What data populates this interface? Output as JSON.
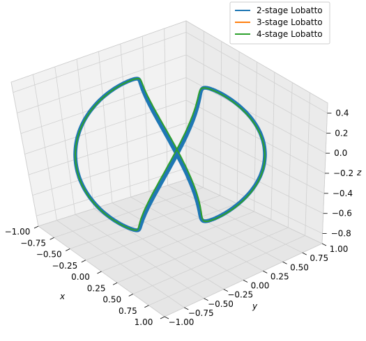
{
  "chart_data": {
    "type": "line",
    "projection": "3d",
    "xlabel": "x",
    "ylabel": "y",
    "zlabel": "z",
    "xlim": [
      -1.0,
      1.0
    ],
    "ylim": [
      -1.0,
      1.0
    ],
    "zlim": [
      -0.9,
      0.5
    ],
    "x_ticks": [
      "−1.00",
      "−0.75",
      "−0.50",
      "−0.25",
      "0.00",
      "0.25",
      "0.50",
      "0.75",
      "1.00"
    ],
    "y_ticks": [
      "−1.00",
      "−0.75",
      "−0.50",
      "−0.25",
      "0.00",
      "0.25",
      "0.50",
      "0.75",
      "1.00"
    ],
    "z_ticks": [
      "−0.8",
      "−0.6",
      "−0.4",
      "−0.2",
      "0.0",
      "0.2",
      "0.4"
    ],
    "grid": true,
    "legend_position": "top-right",
    "series": [
      {
        "name": "2-stage Lobatto",
        "color": "#1f77b4"
      },
      {
        "name": "3-stage Lobatto",
        "color": "#ff7f0e"
      },
      {
        "name": "4-stage Lobatto",
        "color": "#2ca02c"
      }
    ]
  }
}
